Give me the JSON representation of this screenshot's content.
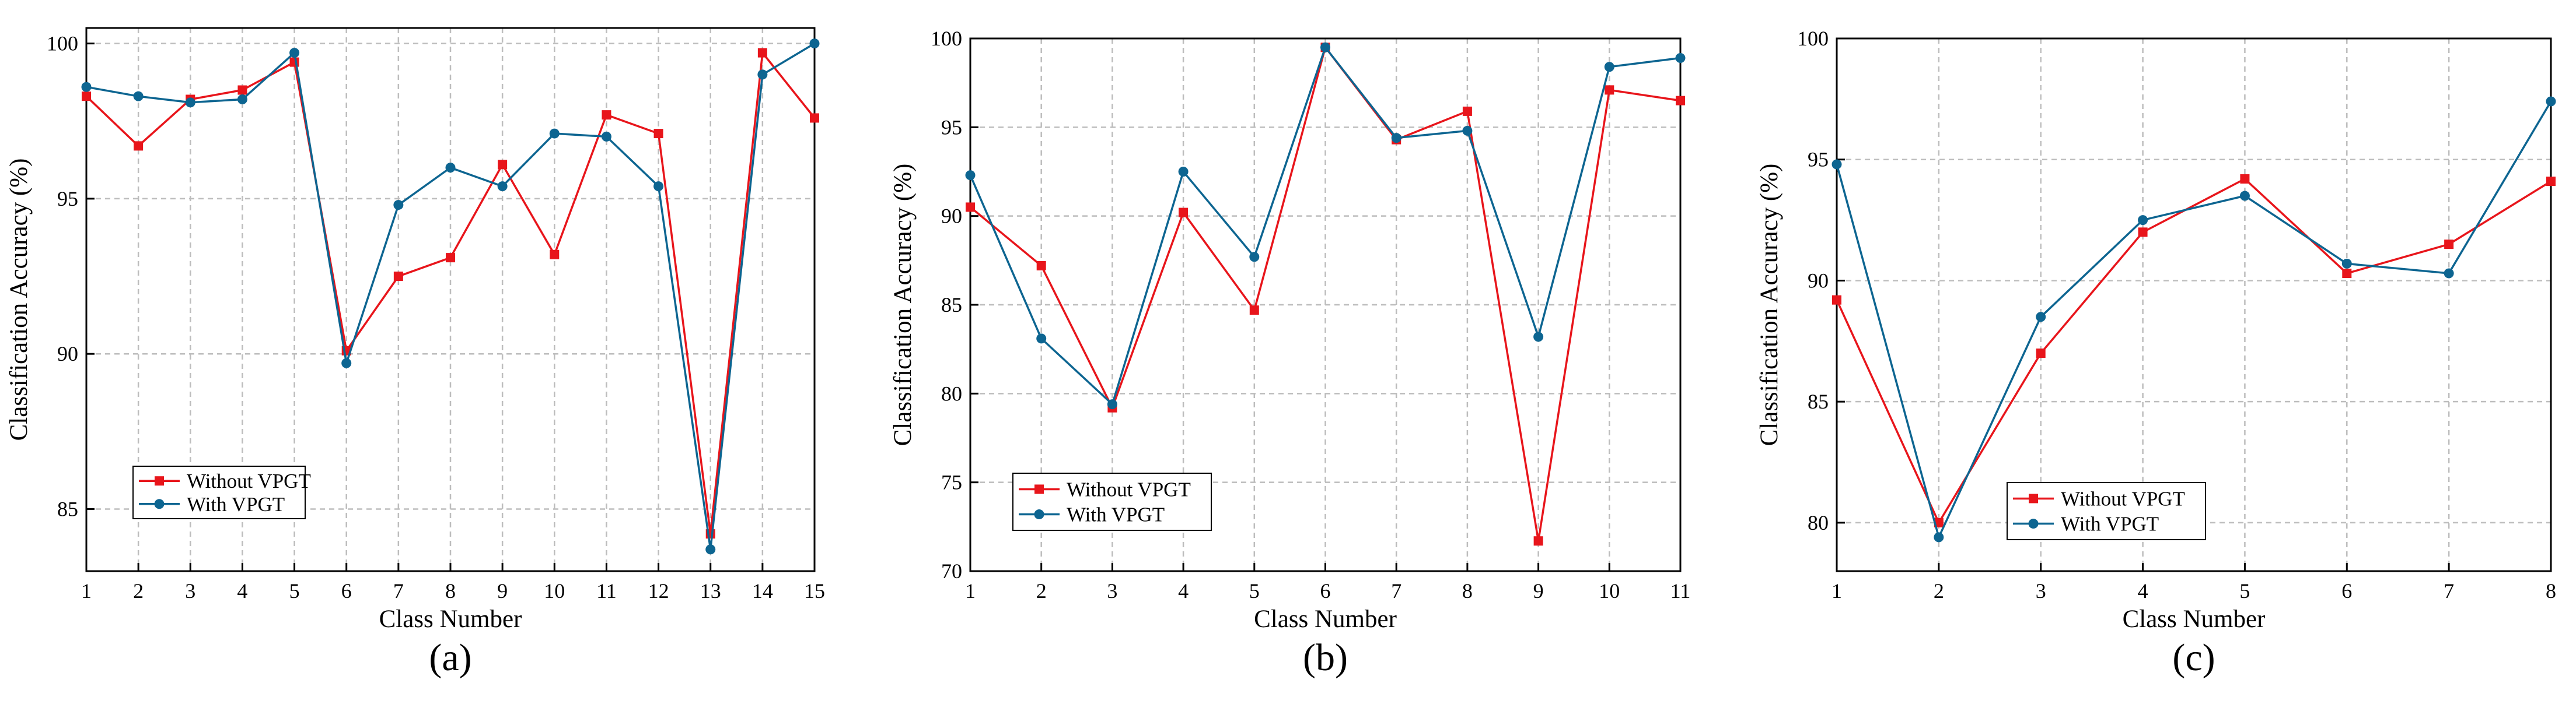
{
  "colors": {
    "without": "#e8151b",
    "with": "#0d6591",
    "grid": "#bdbdbd",
    "axis": "#000000"
  },
  "chart_data": [
    {
      "type": "line",
      "caption": "(a)",
      "xlabel": "Class Number",
      "ylabel": "Classification Accuracy (%)",
      "xlim": [
        1,
        15
      ],
      "ylim": [
        83,
        100.5
      ],
      "xticks": [
        1,
        2,
        3,
        4,
        5,
        6,
        7,
        8,
        9,
        10,
        11,
        12,
        13,
        14,
        15
      ],
      "yticks": [
        85,
        90,
        95,
        100
      ],
      "legend": "bottom-left",
      "x": [
        1,
        2,
        3,
        4,
        5,
        6,
        7,
        8,
        9,
        10,
        11,
        12,
        13,
        14,
        15
      ],
      "series": [
        {
          "name": "Without VPGT",
          "marker": "square",
          "values": [
            98.3,
            96.7,
            98.2,
            98.5,
            99.4,
            90.1,
            92.5,
            93.1,
            96.1,
            93.2,
            97.7,
            97.1,
            84.2,
            99.7,
            97.6
          ]
        },
        {
          "name": "With VPGT",
          "marker": "circle",
          "values": [
            98.6,
            98.3,
            98.1,
            98.2,
            99.7,
            89.7,
            94.8,
            96.0,
            95.4,
            97.1,
            97.0,
            95.4,
            83.7,
            99.0,
            100.0
          ]
        }
      ]
    },
    {
      "type": "line",
      "caption": "(b)",
      "xlabel": "Class Number",
      "ylabel": "Classification Accuracy (%)",
      "xlim": [
        1,
        11
      ],
      "ylim": [
        70,
        100
      ],
      "xticks": [
        1,
        2,
        3,
        4,
        5,
        6,
        7,
        8,
        9,
        10,
        11
      ],
      "yticks": [
        70,
        75,
        80,
        85,
        90,
        95,
        100
      ],
      "legend": "bottom-left",
      "x": [
        1,
        2,
        3,
        4,
        5,
        6,
        7,
        8,
        9,
        10,
        11
      ],
      "series": [
        {
          "name": "Without VPGT",
          "marker": "square",
          "values": [
            90.5,
            87.2,
            79.2,
            90.2,
            84.7,
            99.5,
            94.3,
            95.9,
            71.7,
            97.1,
            96.5
          ]
        },
        {
          "name": "With VPGT",
          "marker": "circle",
          "values": [
            92.3,
            83.1,
            79.4,
            92.5,
            87.7,
            99.5,
            94.4,
            94.8,
            83.2,
            98.4,
            98.9
          ]
        }
      ]
    },
    {
      "type": "line",
      "caption": "(c)",
      "xlabel": "Class Number",
      "ylabel": "Classification Accuracy (%)",
      "xlim": [
        1,
        8
      ],
      "ylim": [
        78,
        100
      ],
      "xticks": [
        1,
        2,
        3,
        4,
        5,
        6,
        7,
        8
      ],
      "yticks": [
        80,
        85,
        90,
        95,
        100
      ],
      "legend": "bottom-left",
      "x": [
        1,
        2,
        3,
        4,
        5,
        6,
        7,
        8
      ],
      "series": [
        {
          "name": "Without VPGT",
          "marker": "square",
          "values": [
            89.2,
            80.0,
            87.0,
            92.0,
            94.2,
            90.3,
            91.5,
            94.1
          ]
        },
        {
          "name": "With VPGT",
          "marker": "circle",
          "values": [
            94.8,
            79.4,
            88.5,
            92.5,
            93.5,
            90.7,
            90.3,
            97.4
          ]
        }
      ]
    }
  ]
}
